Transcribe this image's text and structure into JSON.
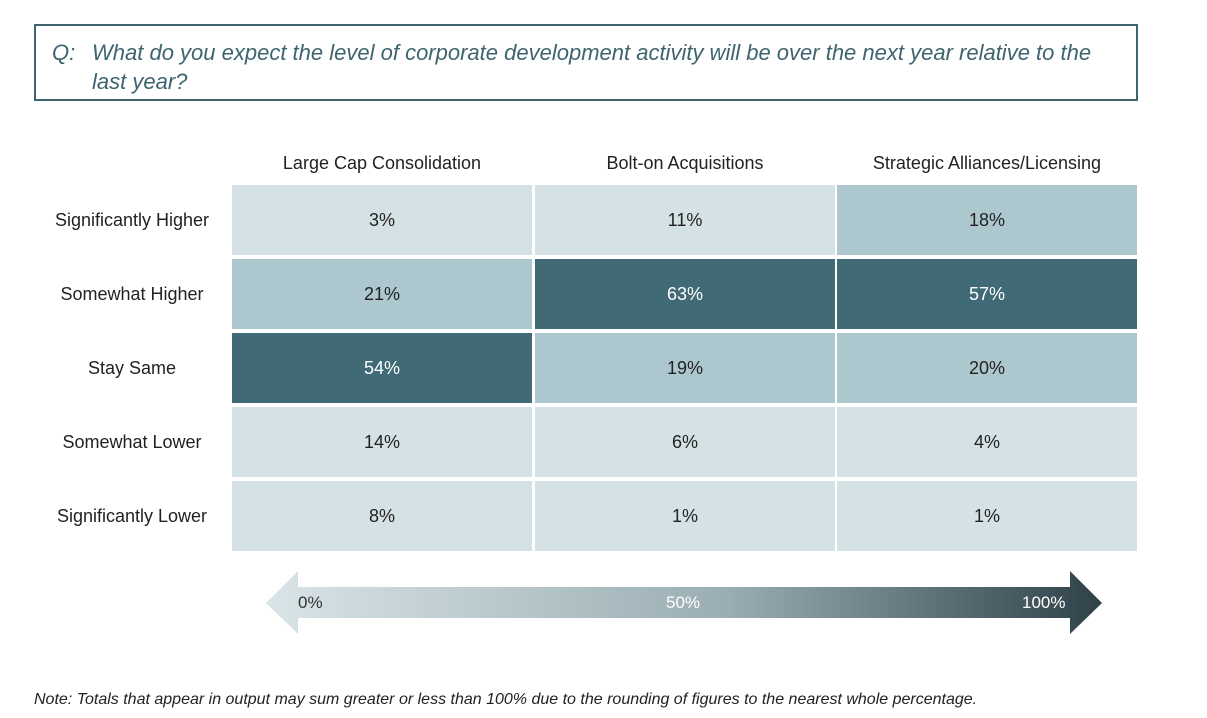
{
  "question": {
    "prefix": "Q:",
    "text": "What do you expect the level of corporate development activity will be over the next year relative to the last year?"
  },
  "chart_data": {
    "type": "heatmap",
    "title": "",
    "columns": [
      "Large Cap Consolidation",
      "Bolt-on Acquisitions",
      "Strategic Alliances/Licensing"
    ],
    "rows": [
      "Significantly Higher",
      "Somewhat Higher",
      "Stay Same",
      "Somewhat Lower",
      "Significantly Lower"
    ],
    "values": [
      [
        3,
        11,
        18
      ],
      [
        21,
        63,
        57
      ],
      [
        54,
        19,
        20
      ],
      [
        14,
        6,
        4
      ],
      [
        8,
        1,
        1
      ]
    ],
    "value_suffix": "%",
    "color_scale": {
      "labels": [
        "0%",
        "50%",
        "100%"
      ],
      "stops": [
        "#d4e1e5",
        "#acc7cd",
        "#416a77"
      ],
      "gradient_colors": [
        "#d9e4e7",
        "#9aaeb3",
        "#2f4148"
      ]
    }
  },
  "note": "Note:  Totals that appear in output may sum greater or less than 100% due to the rounding of figures to the nearest whole percentage."
}
